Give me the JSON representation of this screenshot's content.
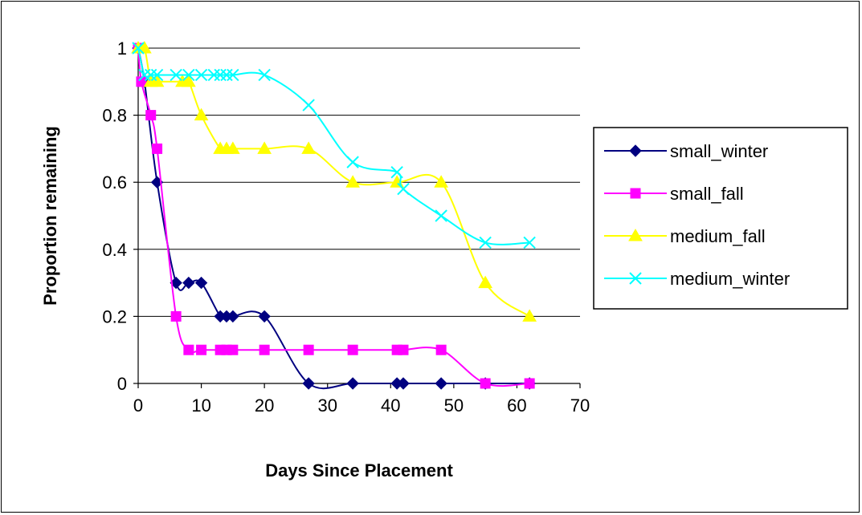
{
  "chart_data": {
    "type": "line",
    "title": "",
    "xlabel": "Days Since Placement",
    "ylabel": "Proportion remaining",
    "xlim": [
      0,
      70
    ],
    "ylim": [
      0,
      1
    ],
    "x_ticks": [
      "0",
      "10",
      "20",
      "30",
      "40",
      "50",
      "60",
      "70"
    ],
    "y_ticks": [
      "0",
      "0.2",
      "0.4",
      "0.6",
      "0.8",
      "1"
    ],
    "grid": "horizontal",
    "legend_position": "right",
    "series": [
      {
        "name": "small_winter",
        "color": "#000080",
        "marker": "diamond",
        "x": [
          0,
          1,
          3,
          6,
          8,
          10,
          13,
          14,
          15,
          20,
          27,
          34,
          41,
          42,
          48,
          55,
          62
        ],
        "y": [
          1,
          0.9,
          0.6,
          0.3,
          0.3,
          0.3,
          0.2,
          0.2,
          0.2,
          0.2,
          0,
          0,
          0,
          0,
          0,
          0,
          0
        ]
      },
      {
        "name": "small_fall",
        "color": "#ff00ff",
        "marker": "square",
        "x": [
          0,
          0.5,
          2,
          3,
          6,
          8,
          10,
          13,
          14,
          15,
          20,
          27,
          34,
          41,
          42,
          48,
          55,
          62
        ],
        "y": [
          1,
          0.9,
          0.8,
          0.7,
          0.2,
          0.1,
          0.1,
          0.1,
          0.1,
          0.1,
          0.1,
          0.1,
          0.1,
          0.1,
          0.1,
          0.1,
          0,
          0
        ]
      },
      {
        "name": "medium_fall",
        "color": "#ffff00",
        "marker": "triangle",
        "x": [
          0,
          1,
          2,
          3,
          7,
          8,
          10,
          13,
          14,
          15,
          20,
          27,
          34,
          41,
          48,
          55,
          62
        ],
        "y": [
          1,
          1,
          0.9,
          0.9,
          0.9,
          0.9,
          0.8,
          0.7,
          0.7,
          0.7,
          0.7,
          0.7,
          0.6,
          0.6,
          0.6,
          0.3,
          0.2
        ]
      },
      {
        "name": "medium_winter",
        "color": "#00ffff",
        "marker": "x",
        "x": [
          0,
          1,
          2,
          3,
          6,
          8,
          10,
          12,
          13,
          14,
          15,
          20,
          27,
          34,
          41,
          42,
          48,
          55,
          62
        ],
        "y": [
          1,
          0.92,
          0.92,
          0.92,
          0.92,
          0.92,
          0.92,
          0.92,
          0.92,
          0.92,
          0.92,
          0.92,
          0.83,
          0.66,
          0.63,
          0.58,
          0.5,
          0.42,
          0.42
        ]
      }
    ]
  }
}
